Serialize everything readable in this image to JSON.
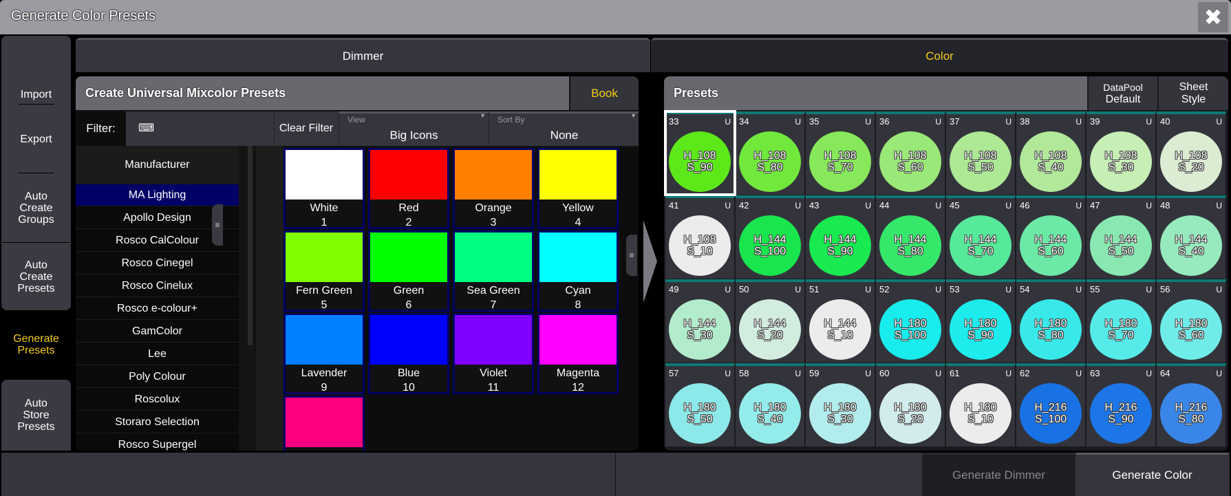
{
  "window": {
    "title": "Generate Color Presets",
    "close_icon": "close-x-icon"
  },
  "sidebar": {
    "items": [
      {
        "label": "Import"
      },
      {
        "label": "Export"
      },
      {
        "label": "Auto\nCreate\nGroups"
      },
      {
        "label": "Auto\nCreate\nPresets"
      },
      {
        "label": "Generate\nPresets",
        "active": true
      },
      {
        "label": "Auto\nStore\nPresets"
      }
    ]
  },
  "tabs": [
    {
      "label": "Dimmer"
    },
    {
      "label": "Color",
      "selected": true
    }
  ],
  "mixcolor": {
    "title": "Create Universal Mixcolor Presets",
    "book_label": "Book",
    "filter_label": "Filter:",
    "filter_value": "",
    "clear_filter": "Clear Filter",
    "view_label": "View",
    "view_value": "Big Icons",
    "sort_label": "Sort By",
    "sort_value": "None",
    "manufacturer_header": "Manufacturer",
    "manufacturers": [
      "MA Lighting",
      "Apollo Design",
      "Rosco CalColour",
      "Rosco Cinegel",
      "Rosco Cinelux",
      "Rosco e-colour+",
      "GamColor",
      "Lee",
      "Poly Colour",
      "Roscolux",
      "Storaro Selection",
      "Rosco Supergel"
    ],
    "selected_manufacturer": "MA Lighting",
    "colors": [
      {
        "name": "White",
        "num": "1",
        "hex": "#ffffff"
      },
      {
        "name": "Red",
        "num": "2",
        "hex": "#ff0000"
      },
      {
        "name": "Orange",
        "num": "3",
        "hex": "#ff7f00"
      },
      {
        "name": "Yellow",
        "num": "4",
        "hex": "#ffff00"
      },
      {
        "name": "Fern Green",
        "num": "5",
        "hex": "#80ff00"
      },
      {
        "name": "Green",
        "num": "6",
        "hex": "#00ff00"
      },
      {
        "name": "Sea Green",
        "num": "7",
        "hex": "#00ff80"
      },
      {
        "name": "Cyan",
        "num": "8",
        "hex": "#00ffff"
      },
      {
        "name": "Lavender",
        "num": "9",
        "hex": "#0080ff"
      },
      {
        "name": "Blue",
        "num": "10",
        "hex": "#0000ff"
      },
      {
        "name": "Violet",
        "num": "11",
        "hex": "#8000ff"
      },
      {
        "name": "Magenta",
        "num": "12",
        "hex": "#ff00ff"
      },
      {
        "name": "",
        "num": "",
        "hex": "#ff0080"
      }
    ]
  },
  "presets": {
    "title": "Presets",
    "datapool_label": "DataPool",
    "datapool_value": "Default",
    "sheet_style": "Sheet\nStyle",
    "selected": "33",
    "items": [
      {
        "n": "33",
        "h": "H_108",
        "s": "S_90",
        "hex": "#5de81a"
      },
      {
        "n": "34",
        "h": "H_108",
        "s": "S_80",
        "hex": "#72e83d"
      },
      {
        "n": "35",
        "h": "H_108",
        "s": "S_70",
        "hex": "#86e85a"
      },
      {
        "n": "36",
        "h": "H_108",
        "s": "S_60",
        "hex": "#9ae878"
      },
      {
        "n": "37",
        "h": "H_108",
        "s": "S_50",
        "hex": "#ade895"
      },
      {
        "n": "38",
        "h": "H_108",
        "s": "S_40",
        "hex": "#b2e89a"
      },
      {
        "n": "39",
        "h": "H_108",
        "s": "S_30",
        "hex": "#c6eeb5"
      },
      {
        "n": "40",
        "h": "H_108",
        "s": "S_20",
        "hex": "#dbecd2"
      },
      {
        "n": "41",
        "h": "H_108",
        "s": "S_10",
        "hex": "#ececec"
      },
      {
        "n": "42",
        "h": "H_144",
        "s": "S_100",
        "hex": "#19e64d"
      },
      {
        "n": "43",
        "h": "H_144",
        "s": "S_90",
        "hex": "#19ea50"
      },
      {
        "n": "44",
        "h": "H_144",
        "s": "S_80",
        "hex": "#36e86a"
      },
      {
        "n": "45",
        "h": "H_144",
        "s": "S_70",
        "hex": "#56e99a"
      },
      {
        "n": "46",
        "h": "H_144",
        "s": "S_60",
        "hex": "#6ce9a7"
      },
      {
        "n": "47",
        "h": "H_144",
        "s": "S_50",
        "hex": "#89e8b1"
      },
      {
        "n": "48",
        "h": "H_144",
        "s": "S_40",
        "hex": "#97eabd"
      },
      {
        "n": "49",
        "h": "H_144",
        "s": "S_30",
        "hex": "#b3eccc"
      },
      {
        "n": "50",
        "h": "H_144",
        "s": "S_20",
        "hex": "#d2ece0"
      },
      {
        "n": "51",
        "h": "H_144",
        "s": "S_10",
        "hex": "#ececec"
      },
      {
        "n": "52",
        "h": "H_180",
        "s": "S_100",
        "hex": "#18ecec"
      },
      {
        "n": "53",
        "h": "H_180",
        "s": "S_90",
        "hex": "#1eecec"
      },
      {
        "n": "54",
        "h": "H_180",
        "s": "S_80",
        "hex": "#39e9e9"
      },
      {
        "n": "55",
        "h": "H_180",
        "s": "S_70",
        "hex": "#56ebe8"
      },
      {
        "n": "56",
        "h": "H_180",
        "s": "S_60",
        "hex": "#6fece8"
      },
      {
        "n": "57",
        "h": "H_180",
        "s": "S_50",
        "hex": "#8de9e9"
      },
      {
        "n": "58",
        "h": "H_180",
        "s": "S_40",
        "hex": "#94ecea"
      },
      {
        "n": "59",
        "h": "H_180",
        "s": "S_30",
        "hex": "#b3ecec"
      },
      {
        "n": "60",
        "h": "H_180",
        "s": "S_20",
        "hex": "#d2eced"
      },
      {
        "n": "61",
        "h": "H_180",
        "s": "S_10",
        "hex": "#ececec"
      },
      {
        "n": "62",
        "h": "H_216",
        "s": "S_100",
        "hex": "#1872e6"
      },
      {
        "n": "63",
        "h": "H_216",
        "s": "S_90",
        "hex": "#1d76e8"
      },
      {
        "n": "64",
        "h": "H_216",
        "s": "S_80",
        "hex": "#3a86e8"
      }
    ],
    "u": "U"
  },
  "footer": {
    "generate_dimmer": "Generate Dimmer",
    "generate_color": "Generate Color"
  }
}
